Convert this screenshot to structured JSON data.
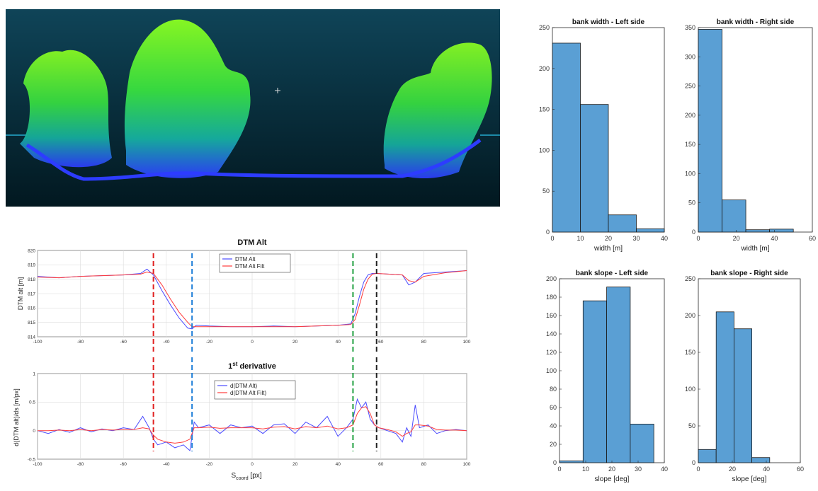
{
  "chart_data": [
    {
      "id": "dtm",
      "type": "line",
      "title": "DTM Alt",
      "xlabel": "",
      "ylabel": "DTM alt [m]",
      "xlim": [
        -100,
        100
      ],
      "ylim": [
        814,
        820
      ],
      "xticks": [
        -100,
        -80,
        -60,
        -40,
        -20,
        0,
        20,
        40,
        60,
        80,
        100
      ],
      "yticks": [
        814,
        815,
        816,
        817,
        818,
        819,
        820
      ],
      "grid": true,
      "legend": "top-center",
      "x": [
        -100,
        -90,
        -80,
        -70,
        -60,
        -52,
        -49,
        -46,
        -42,
        -38,
        -34,
        -30,
        -28,
        -26,
        -20,
        -10,
        0,
        10,
        20,
        30,
        40,
        46,
        48,
        50,
        52,
        54,
        56,
        58,
        64,
        70,
        73,
        76,
        80,
        90,
        100
      ],
      "series": [
        {
          "name": "DTM Alt",
          "color": "#4b4bff",
          "values": [
            818.2,
            818.1,
            818.2,
            818.25,
            818.3,
            818.4,
            818.7,
            818.3,
            817.2,
            816.2,
            815.3,
            814.6,
            814.55,
            814.8,
            814.75,
            814.7,
            814.7,
            814.75,
            814.7,
            814.75,
            814.8,
            814.9,
            815.6,
            816.8,
            817.8,
            818.3,
            818.4,
            818.4,
            818.35,
            818.3,
            817.6,
            817.8,
            818.4,
            818.5,
            818.6
          ]
        },
        {
          "name": "DTM Alt Filt",
          "color": "#ff3b3b",
          "values": [
            818.15,
            818.1,
            818.2,
            818.25,
            818.3,
            818.35,
            818.5,
            818.4,
            817.6,
            816.6,
            815.7,
            815.0,
            814.7,
            814.7,
            814.7,
            814.7,
            814.7,
            814.7,
            814.7,
            814.75,
            814.8,
            814.85,
            815.2,
            816.2,
            817.3,
            818.0,
            818.35,
            818.4,
            818.35,
            818.3,
            817.9,
            817.8,
            818.2,
            818.45,
            818.6
          ]
        }
      ],
      "vlines": [
        {
          "x": -46,
          "color": "#e02020"
        },
        {
          "x": -28,
          "color": "#1f7fd8"
        },
        {
          "x": 47,
          "color": "#20a040"
        },
        {
          "x": 58,
          "color": "#222222"
        }
      ]
    },
    {
      "id": "deriv",
      "type": "line",
      "title_main": "1",
      "title_sup": "st",
      "title_rest": " derivative",
      "xlabel_main": "S",
      "xlabel_sub": "coord",
      "xlabel_rest": " [px]",
      "ylabel": "d(DTM alt)/ds [m/px]",
      "xlim": [
        -100,
        100
      ],
      "ylim": [
        -0.5,
        1
      ],
      "xticks": [
        -100,
        -80,
        -60,
        -40,
        -20,
        0,
        20,
        40,
        60,
        80,
        100
      ],
      "yticks": [
        -0.5,
        0,
        0.5,
        1
      ],
      "grid": true,
      "legend": "top-center",
      "x": [
        -100,
        -95,
        -90,
        -85,
        -80,
        -75,
        -70,
        -65,
        -60,
        -55,
        -51,
        -48,
        -46,
        -44,
        -40,
        -36,
        -32,
        -29,
        -27,
        -25,
        -20,
        -15,
        -10,
        -5,
        0,
        5,
        10,
        15,
        20,
        25,
        30,
        35,
        40,
        44,
        47,
        49,
        51,
        53,
        55,
        57,
        59,
        63,
        67,
        70,
        72,
        74,
        76,
        78,
        82,
        86,
        90,
        95,
        100
      ],
      "series": [
        {
          "name": "d(DTM Alt)",
          "color": "#4b4bff",
          "values": [
            0,
            -0.05,
            0.02,
            -0.03,
            0.05,
            -0.02,
            0.03,
            0,
            0.05,
            0.02,
            0.25,
            0.05,
            -0.15,
            -0.25,
            -0.2,
            -0.3,
            -0.25,
            -0.35,
            0.15,
            0.05,
            0.1,
            -0.05,
            0.1,
            0.05,
            0.08,
            -0.05,
            0.1,
            0.12,
            -0.05,
            0.15,
            0.05,
            0.25,
            -0.1,
            0.05,
            0.2,
            0.55,
            0.4,
            0.5,
            0.2,
            0.1,
            0.05,
            0,
            -0.05,
            -0.2,
            0.05,
            -0.1,
            0.45,
            0.05,
            0.1,
            -0.05,
            0,
            0.02,
            0
          ]
        },
        {
          "name": "d(DTM Alt Filt)",
          "color": "#ff3b3b",
          "values": [
            0,
            0,
            0.01,
            0,
            0.02,
            0,
            0.02,
            0.01,
            0.02,
            0.02,
            0.05,
            0.03,
            -0.08,
            -0.15,
            -0.2,
            -0.22,
            -0.2,
            -0.15,
            0.05,
            0.05,
            0.06,
            0.04,
            0.05,
            0.05,
            0.05,
            0.03,
            0.06,
            0.07,
            0.03,
            0.07,
            0.05,
            0.08,
            0.03,
            0.05,
            0.1,
            0.3,
            0.4,
            0.42,
            0.3,
            0.1,
            0.05,
            0.02,
            -0.02,
            -0.1,
            -0.05,
            -0.02,
            0.1,
            0.1,
            0.08,
            0.02,
            0.01,
            0.01,
            0
          ]
        }
      ],
      "vlines": [
        {
          "x": -46,
          "color": "#e02020"
        },
        {
          "x": -28,
          "color": "#1f7fd8"
        },
        {
          "x": 47,
          "color": "#20a040"
        },
        {
          "x": 58,
          "color": "#222222"
        }
      ]
    },
    {
      "id": "bw-left",
      "type": "bar",
      "title": "bank width - Left side",
      "xlabel": "width [m]",
      "ylabel": "",
      "xlim": [
        0,
        40
      ],
      "ylim": [
        0,
        250
      ],
      "xticks": [
        0,
        10,
        20,
        30,
        40
      ],
      "yticks": [
        0,
        50,
        100,
        150,
        200,
        250
      ],
      "bin_edges": [
        0,
        10,
        20,
        30,
        40
      ],
      "values": [
        231,
        156,
        21,
        4
      ],
      "color": "#5a9fd4"
    },
    {
      "id": "bw-right",
      "type": "bar",
      "title": "bank width - Right side",
      "xlabel": "width [m]",
      "ylabel": "",
      "xlim": [
        0,
        60
      ],
      "ylim": [
        0,
        350
      ],
      "xticks": [
        0,
        20,
        40,
        60
      ],
      "yticks": [
        0,
        50,
        100,
        150,
        200,
        250,
        300,
        350
      ],
      "bin_edges": [
        0,
        12.5,
        25,
        37.5,
        50
      ],
      "values": [
        347,
        55,
        4,
        5
      ],
      "color": "#5a9fd4"
    },
    {
      "id": "bs-left",
      "type": "bar",
      "title": "bank slope - Left side",
      "xlabel": "slope [deg]",
      "ylabel": "",
      "xlim": [
        0,
        40
      ],
      "ylim": [
        0,
        200
      ],
      "xticks": [
        0,
        10,
        20,
        30,
        40
      ],
      "yticks": [
        0,
        20,
        40,
        60,
        80,
        100,
        120,
        140,
        160,
        180,
        200
      ],
      "bin_edges": [
        0,
        9,
        18,
        27,
        36
      ],
      "values": [
        2,
        176,
        191,
        42
      ],
      "color": "#5a9fd4"
    },
    {
      "id": "bs-right",
      "type": "bar",
      "title": "bank slope - Right side",
      "xlabel": "slope [deg]",
      "ylabel": "",
      "xlim": [
        0,
        60
      ],
      "ylim": [
        0,
        250
      ],
      "xticks": [
        0,
        20,
        40,
        60
      ],
      "yticks": [
        0,
        50,
        100,
        150,
        200,
        250
      ],
      "bin_edges": [
        0,
        10.5,
        21,
        31.5,
        42
      ],
      "values": [
        18,
        205,
        182,
        7
      ],
      "color": "#5a9fd4"
    }
  ],
  "pointcloud": {
    "bg_top": "#0f4458",
    "bg_bottom": "#021820",
    "ground_color": "#2d3cff",
    "canopy_color": "#4cf000"
  }
}
